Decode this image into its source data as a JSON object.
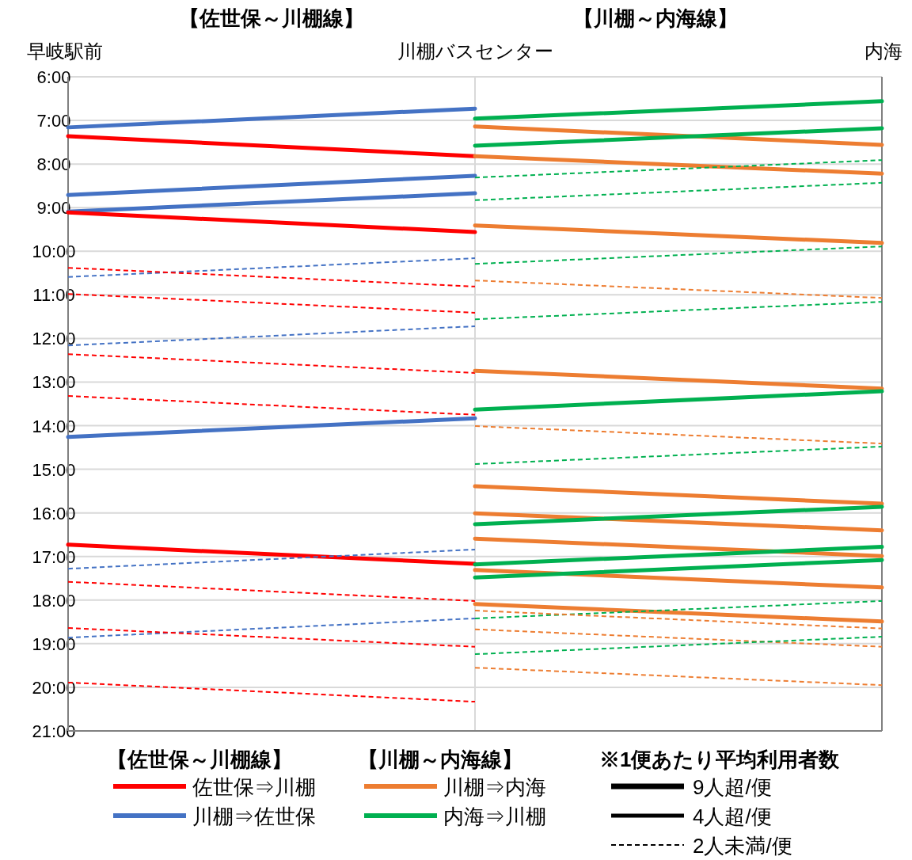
{
  "chart_data": {
    "type": "line",
    "categories": [
      "早岐駅前",
      "川棚バスセンター",
      "内海"
    ],
    "ylim": [
      21,
      6
    ],
    "yticks": [
      {
        "value": 6,
        "label": "6:00"
      },
      {
        "value": 7,
        "label": "7:00"
      },
      {
        "value": 8,
        "label": "8:00"
      },
      {
        "value": 9,
        "label": "9:00"
      },
      {
        "value": 10,
        "label": "10:00"
      },
      {
        "value": 11,
        "label": "11:00"
      },
      {
        "value": 12,
        "label": "12:00"
      },
      {
        "value": 13,
        "label": "13:00"
      },
      {
        "value": 14,
        "label": "14:00"
      },
      {
        "value": 15,
        "label": "15:00"
      },
      {
        "value": 16,
        "label": "16:00"
      },
      {
        "value": 17,
        "label": "17:00"
      },
      {
        "value": 18,
        "label": "18:00"
      },
      {
        "value": 19,
        "label": "19:00"
      },
      {
        "value": 20,
        "label": "20:00"
      },
      {
        "value": 21,
        "label": "21:00"
      }
    ],
    "grid": true,
    "legend": "bottom",
    "annotations": [
      "【佐世保～川棚線】",
      "【川棚～内海線】",
      "【佐世保～川棚線】",
      "【川棚～内海線】",
      "※1便あたり平均利用者数",
      "9人超/便",
      "4人超/便",
      "2人未満/便"
    ],
    "series": [
      {
        "name": "佐世保⇒川棚",
        "color": "#ff0000",
        "line_style": "solid",
        "values": [
          7.36,
          7.82,
          null
        ]
      },
      {
        "name": "川棚⇒佐世保",
        "color": "#4472c4",
        "line_style": "solid",
        "values": [
          7.16,
          6.73,
          null
        ]
      },
      {
        "color": "#4472c4",
        "line_style": "solid",
        "values": [
          8.71,
          8.27,
          null
        ]
      },
      {
        "color": "#4472c4",
        "line_style": "solid",
        "values": [
          9.09,
          8.67,
          null
        ]
      },
      {
        "color": "#ff0000",
        "line_style": "solid",
        "values": [
          9.11,
          9.56,
          null
        ]
      },
      {
        "color": "#4472c4",
        "line_style": "dashed",
        "values": [
          10.59,
          10.16,
          null
        ]
      },
      {
        "color": "#ff0000",
        "line_style": "dashed",
        "values": [
          10.38,
          10.81,
          null
        ]
      },
      {
        "color": "#ff0000",
        "line_style": "dashed",
        "values": [
          10.98,
          11.41,
          null
        ]
      },
      {
        "color": "#4472c4",
        "line_style": "dashed",
        "values": [
          12.16,
          11.72,
          null
        ]
      },
      {
        "color": "#ff0000",
        "line_style": "dashed",
        "values": [
          12.36,
          12.79,
          null
        ]
      },
      {
        "color": "#ff0000",
        "line_style": "dashed",
        "values": [
          13.32,
          13.75,
          null
        ]
      },
      {
        "color": "#4472c4",
        "line_style": "solid",
        "values": [
          14.26,
          13.83,
          null
        ]
      },
      {
        "color": "#ff0000",
        "line_style": "solid",
        "values": [
          16.73,
          17.17,
          null
        ]
      },
      {
        "color": "#4472c4",
        "line_style": "dashed",
        "values": [
          17.28,
          16.84,
          null
        ]
      },
      {
        "color": "#ff0000",
        "line_style": "dashed",
        "values": [
          17.58,
          18.02,
          null
        ]
      },
      {
        "color": "#4472c4",
        "line_style": "dashed",
        "values": [
          18.86,
          18.42,
          null
        ]
      },
      {
        "color": "#ff0000",
        "line_style": "dashed",
        "values": [
          18.64,
          19.07,
          null
        ]
      },
      {
        "color": "#ff0000",
        "line_style": "dashed",
        "values": [
          19.89,
          20.33,
          null
        ]
      },
      {
        "name": "川棚⇒内海",
        "color": "#ed7d31",
        "line_style": "solid",
        "values": [
          null,
          7.14,
          7.56
        ]
      },
      {
        "name": "内海⇒川棚",
        "color": "#00b050",
        "line_style": "solid",
        "values": [
          null,
          6.96,
          6.56
        ]
      },
      {
        "color": "#00b050",
        "line_style": "solid",
        "values": [
          null,
          7.58,
          7.18
        ]
      },
      {
        "color": "#ed7d31",
        "line_style": "solid",
        "values": [
          null,
          7.82,
          8.22
        ]
      },
      {
        "color": "#00b050",
        "line_style": "dashed",
        "values": [
          null,
          8.31,
          7.91
        ]
      },
      {
        "color": "#00b050",
        "line_style": "dashed",
        "values": [
          null,
          8.83,
          8.43
        ]
      },
      {
        "color": "#ed7d31",
        "line_style": "solid",
        "values": [
          null,
          9.41,
          9.81
        ]
      },
      {
        "color": "#00b050",
        "line_style": "dashed",
        "values": [
          null,
          10.29,
          9.89
        ]
      },
      {
        "color": "#ed7d31",
        "line_style": "dashed",
        "values": [
          null,
          10.67,
          11.07
        ]
      },
      {
        "color": "#00b050",
        "line_style": "dashed",
        "values": [
          null,
          11.56,
          11.16
        ]
      },
      {
        "color": "#ed7d31",
        "line_style": "solid",
        "values": [
          null,
          12.74,
          13.15
        ]
      },
      {
        "color": "#00b050",
        "line_style": "solid",
        "values": [
          null,
          13.63,
          13.21
        ]
      },
      {
        "color": "#ed7d31",
        "line_style": "dashed",
        "values": [
          null,
          14.01,
          14.41
        ]
      },
      {
        "color": "#00b050",
        "line_style": "dashed",
        "values": [
          null,
          14.88,
          14.48
        ]
      },
      {
        "color": "#ed7d31",
        "line_style": "solid",
        "values": [
          null,
          15.39,
          15.79
        ]
      },
      {
        "color": "#ed7d31",
        "line_style": "solid",
        "values": [
          null,
          16.01,
          16.4
        ]
      },
      {
        "color": "#00b050",
        "line_style": "solid",
        "values": [
          null,
          16.26,
          15.86
        ]
      },
      {
        "color": "#ed7d31",
        "line_style": "solid",
        "values": [
          null,
          16.59,
          16.99
        ]
      },
      {
        "color": "#00b050",
        "line_style": "solid",
        "values": [
          null,
          17.18,
          16.78
        ]
      },
      {
        "color": "#ed7d31",
        "line_style": "solid",
        "values": [
          null,
          17.31,
          17.71
        ]
      },
      {
        "color": "#00b050",
        "line_style": "solid",
        "values": [
          null,
          17.48,
          17.08
        ]
      },
      {
        "color": "#ed7d31",
        "line_style": "solid",
        "values": [
          null,
          18.09,
          18.49
        ]
      },
      {
        "color": "#00b050",
        "line_style": "dashed",
        "values": [
          null,
          18.42,
          18.02
        ]
      },
      {
        "color": "#ed7d31",
        "line_style": "dashed",
        "values": [
          null,
          18.24,
          18.65
        ]
      },
      {
        "color": "#ed7d31",
        "line_style": "dashed",
        "values": [
          null,
          18.67,
          19.07
        ]
      },
      {
        "color": "#00b050",
        "line_style": "dashed",
        "values": [
          null,
          19.24,
          18.84
        ]
      },
      {
        "color": "#ed7d31",
        "line_style": "dashed",
        "values": [
          null,
          19.55,
          19.95
        ]
      }
    ]
  }
}
